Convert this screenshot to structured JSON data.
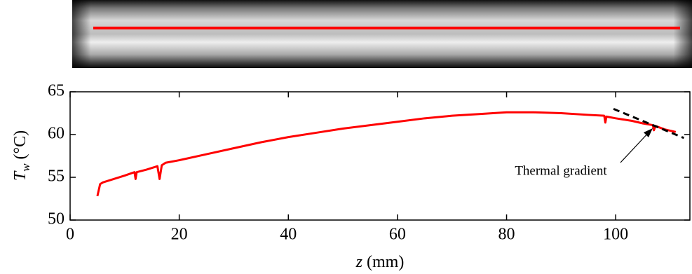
{
  "chart_data": {
    "type": "line",
    "xlabel_symbol": "z",
    "xlabel_unit": "(mm)",
    "ylabel_symbol": "T",
    "ylabel_subscript": "w",
    "ylabel_unit": "(°C)",
    "xlim": [
      0,
      113.6
    ],
    "ylim": [
      50,
      65
    ],
    "xticks": [
      0,
      20,
      40,
      60,
      80,
      100
    ],
    "yticks": [
      50,
      55,
      60,
      65
    ],
    "series": [
      {
        "color": "#ff0000",
        "x": [
          5,
          5.5,
          6,
          8,
          10,
          11.8,
          12,
          12.2,
          14,
          16,
          16.4,
          16.8,
          17.5,
          20,
          25,
          30,
          35,
          40,
          45,
          50,
          55,
          60,
          65,
          70,
          75,
          80,
          85,
          90,
          95,
          97.9,
          98.1,
          98.3,
          100,
          103,
          105,
          106.8,
          107,
          107.3,
          109,
          111
        ],
        "values": [
          52.8,
          54.2,
          54.4,
          54.8,
          55.2,
          55.6,
          54.8,
          55.6,
          55.9,
          56.3,
          54.8,
          56.4,
          56.7,
          57,
          57.7,
          58.4,
          59.1,
          59.7,
          60.2,
          60.7,
          61.1,
          61.5,
          61.9,
          62.2,
          62.4,
          62.6,
          62.6,
          62.5,
          62.3,
          62.2,
          61.4,
          62.1,
          61.9,
          61.6,
          61.3,
          61.1,
          60.5,
          61,
          60.6,
          60.3
        ]
      }
    ],
    "gradient_line": {
      "x": [
        99.6,
        112.5
      ],
      "values": [
        63,
        59.6
      ],
      "color": "#000000"
    },
    "annotation": "Thermal gradient"
  }
}
